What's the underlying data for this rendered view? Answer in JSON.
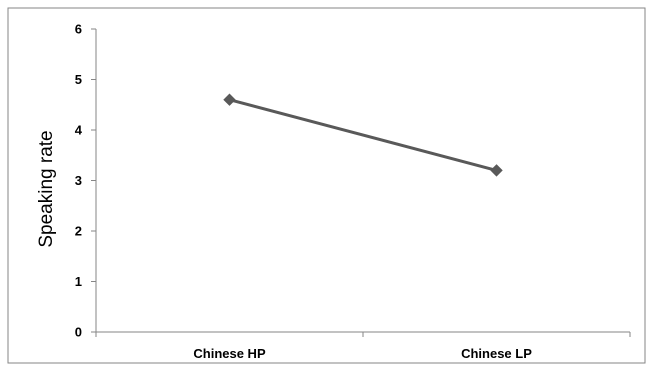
{
  "chart_data": {
    "type": "line",
    "categories": [
      "Chinese HP",
      "Chinese LP"
    ],
    "series": [
      {
        "values": [
          4.6,
          3.2
        ]
      }
    ],
    "title": "",
    "xlabel": "",
    "ylabel": "Speaking rate",
    "ylim": [
      0,
      6
    ],
    "yticks": [
      "0",
      "1",
      "2",
      "3",
      "4",
      "5",
      "6"
    ],
    "grid": false,
    "legend": "none",
    "colors": {
      "line": "#595959",
      "marker": "#595959",
      "axis": "#868686",
      "frame": "#868686"
    }
  }
}
